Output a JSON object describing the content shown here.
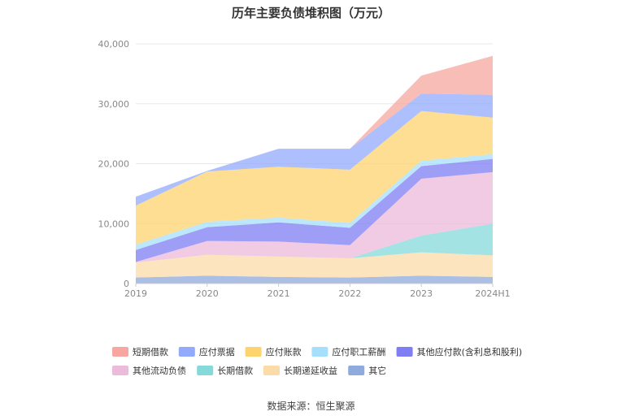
{
  "chart_data": {
    "type": "area",
    "stacked": true,
    "title": "历年主要负债堆积图（万元）",
    "x": [
      "2019",
      "2020",
      "2021",
      "2022",
      "2023",
      "2024H1"
    ],
    "ylim": [
      0,
      40000
    ],
    "yticks": [
      "0",
      "10,000",
      "20,000",
      "30,000",
      "40,000"
    ],
    "ytick_values": [
      0,
      10000,
      20000,
      30000,
      40000
    ],
    "grid": true,
    "legend_position": "bottom",
    "series": [
      {
        "name": "其它",
        "color": "#8faadc",
        "values": [
          1000,
          1300,
          1100,
          1000,
          1300,
          1100
        ]
      },
      {
        "name": "长期递延收益",
        "color": "#fbdca8",
        "values": [
          2500,
          3500,
          3400,
          3200,
          3900,
          3600
        ]
      },
      {
        "name": "长期借款",
        "color": "#86d9d9",
        "values": [
          0,
          0,
          0,
          0,
          2800,
          5300
        ]
      },
      {
        "name": "其他流动负债",
        "color": "#ecbadb",
        "values": [
          100,
          2300,
          2500,
          2200,
          9500,
          8600
        ]
      },
      {
        "name": "其他应付款(含利息和股利)",
        "color": "#7f7ef3",
        "values": [
          2000,
          2300,
          3200,
          2900,
          2100,
          2200
        ]
      },
      {
        "name": "应付职工薪酬",
        "color": "#a6dffb",
        "values": [
          900,
          900,
          800,
          800,
          900,
          800
        ]
      },
      {
        "name": "应付账款",
        "color": "#fdd36e",
        "values": [
          6500,
          8400,
          8500,
          8900,
          8300,
          6100
        ]
      },
      {
        "name": "应付票据",
        "color": "#91aafb",
        "values": [
          1500,
          100,
          3000,
          3500,
          2900,
          3800
        ]
      },
      {
        "name": "短期借款",
        "color": "#f7a7a0",
        "values": [
          0,
          0,
          0,
          0,
          3000,
          6500
        ]
      }
    ],
    "legend_order": [
      "短期借款",
      "应付票据",
      "应付账款",
      "应付职工薪酬",
      "其他应付款(含利息和股利)",
      "其他流动负债",
      "长期借款",
      "长期递延收益",
      "其它"
    ]
  },
  "source_text": "数据来源：恒生聚源"
}
